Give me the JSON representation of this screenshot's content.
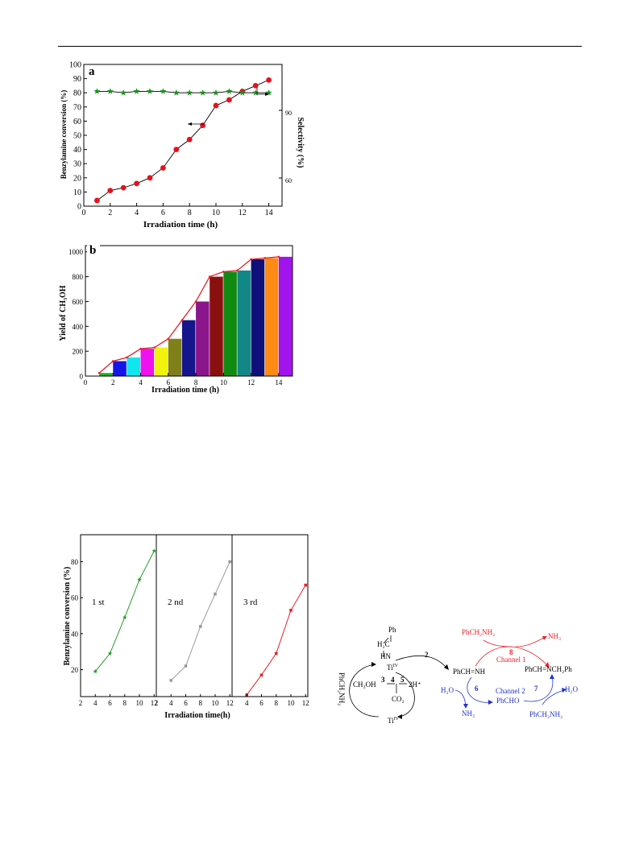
{
  "chart_data": [
    {
      "panel": "a",
      "type": "line",
      "xlabel": "Irradiation time (h)",
      "ylabel": "Benzylamine conversion (%)",
      "y2label": "Selectivity (%)",
      "xlim": [
        0,
        15
      ],
      "ylim": [
        0,
        100
      ],
      "x_ticks": [
        0,
        2,
        4,
        6,
        8,
        10,
        12,
        14
      ],
      "y_ticks": [
        0,
        10,
        20,
        30,
        40,
        50,
        60,
        70,
        80,
        90,
        100
      ],
      "y2_ticks": [
        60,
        90
      ],
      "series": [
        {
          "values_x": [
            1,
            2,
            3,
            4,
            5,
            6,
            7,
            8,
            9,
            10,
            11,
            12,
            13,
            14
          ],
          "values": [
            4,
            11,
            13,
            16,
            20,
            27,
            40,
            47,
            57,
            71,
            75,
            81,
            85,
            89
          ],
          "color": "#e8101c",
          "marker": "circle"
        },
        {
          "values_x": [
            1,
            2,
            3,
            4,
            5,
            6,
            7,
            8,
            9,
            10,
            11,
            12,
            13,
            14
          ],
          "values": [
            81,
            81,
            80,
            81,
            81,
            81,
            80,
            80,
            80,
            80,
            81,
            80,
            80,
            80
          ],
          "color": "#1e8f24",
          "marker": "star"
        }
      ]
    },
    {
      "panel": "b",
      "type": "bar",
      "xlabel": "Irradiation time (h)",
      "ylabel": "Yield of CH₃OH",
      "xlim": [
        0,
        15
      ],
      "ylim": [
        0,
        1050
      ],
      "x_ticks": [
        0,
        2,
        4,
        6,
        8,
        10,
        12,
        14
      ],
      "y_ticks": [
        0,
        200,
        400,
        600,
        800,
        1000
      ],
      "x": [
        1,
        2,
        3,
        4,
        5,
        6,
        7,
        8,
        9,
        10,
        11,
        12,
        13,
        14
      ],
      "values": [
        25,
        120,
        150,
        220,
        230,
        300,
        450,
        600,
        800,
        840,
        850,
        940,
        950,
        960
      ],
      "bar_colors": [
        "#17b81c",
        "#1515e6",
        "#10e6ee",
        "#ee12ee",
        "#f2f20f",
        "#80801a",
        "#15158c",
        "#8b168b",
        "#8a1010",
        "#118a11",
        "#128787",
        "#10107a",
        "#ff8a14",
        "#a114ee"
      ],
      "line_values": [
        25,
        120,
        150,
        220,
        230,
        300,
        450,
        600,
        800,
        840,
        850,
        940,
        950,
        960
      ],
      "line_color": "#e8202a"
    },
    {
      "panel": "c",
      "type": "line",
      "xlabel": "Irradiation time(h)",
      "ylabel": "Benzylamine conversion (%)",
      "y_ticks": [
        20,
        40,
        60,
        80
      ],
      "ylim": [
        5,
        95
      ],
      "subplots": [
        {
          "label": "1 st",
          "x": [
            4,
            6,
            8,
            10,
            12
          ],
          "values": [
            19,
            29,
            49,
            70,
            86
          ],
          "color": "#2a9a2a",
          "x_ticks": [
            "2",
            "4",
            "6",
            "8",
            "10",
            "12"
          ]
        },
        {
          "label": "2 nd",
          "x": [
            4,
            6,
            8,
            10,
            12
          ],
          "values": [
            14,
            22,
            44,
            62,
            80
          ],
          "color": "#9a9a9a",
          "x_ticks": [
            "2",
            "4",
            "6",
            "8",
            "10",
            "12"
          ]
        },
        {
          "label": "3 rd",
          "x": [
            4,
            6,
            8,
            10,
            12
          ],
          "values": [
            6,
            17,
            29,
            53,
            67
          ],
          "color": "#e8202a",
          "x_ticks": [
            "2",
            "4",
            "6",
            "8",
            "10",
            "12"
          ]
        }
      ],
      "xlim": [
        2,
        12.3
      ]
    }
  ],
  "panel_a": {
    "label": "a",
    "xlabel": "Irradiation time (h)",
    "ylabel": "Benzylamine conversion (%)",
    "y2label": "Selectivity (%)",
    "y2_tick_labels": [
      "90",
      "60"
    ],
    "x_tick_labels": [
      "0",
      "2",
      "4",
      "6",
      "8",
      "10",
      "12",
      "14"
    ],
    "y_tick_labels": [
      "0",
      "10",
      "20",
      "30",
      "40",
      "50",
      "60",
      "70",
      "80",
      "90",
      "100"
    ]
  },
  "panel_b": {
    "label": "b",
    "xlabel": "Irradiation time (h)",
    "ylabel": "Yield of CH₃OH",
    "x_tick_labels": [
      "0",
      "2",
      "4",
      "6",
      "8",
      "10",
      "12",
      "14"
    ],
    "y_tick_labels": [
      "0",
      "200",
      "400",
      "600",
      "800",
      "1000"
    ]
  },
  "panel_c": {
    "xlabel": "Irradiation time(h)",
    "ylabel": "Benzylamine conversion (%)",
    "y_tick_labels": [
      "20",
      "40",
      "60",
      "80"
    ],
    "x_tick_labels_1": [
      "2",
      "4",
      "6",
      "8",
      "10",
      "12"
    ],
    "x_tick_labels_2": [
      "2",
      "4",
      "6",
      "8",
      "10",
      "12"
    ],
    "x_tick_labels_3": [
      "4",
      "6",
      "8",
      "10",
      "12"
    ],
    "run_labels": [
      "1 st",
      "2 nd",
      "3 rd"
    ]
  },
  "scheme": {
    "ph": "Ph",
    "h2c": "H₂C",
    "hn": "HN",
    "ti_iv_top": "Ti^IV",
    "ti_iv_bottom": "Ti^IV",
    "reagent_left": "PhCH₂NH₂",
    "ch3oh": "CH₃OH",
    "co2": "CO₂",
    "two_h": "2H⁺",
    "step2": "2",
    "step3": "3",
    "step4": "4",
    "step5": "5",
    "imine": "PhCH=NH",
    "amine_top": "PhCH₂NH₂",
    "nh3_top": "NH₃",
    "step8": "8",
    "channel1": "Channel 1",
    "product": "PhCH=NCH₂Ph",
    "h2o_left": "H₂O",
    "step6": "6",
    "nh3_bottom": "NH₃",
    "channel2": "Channel 2",
    "phcho": "PhCHO",
    "step7": "7",
    "h2o_right": "H₂O",
    "amine_bottom": "PhCH₂NH₂",
    "colors": {
      "red": "#e8202a",
      "blue": "#2233cc",
      "black": "#000000"
    }
  }
}
